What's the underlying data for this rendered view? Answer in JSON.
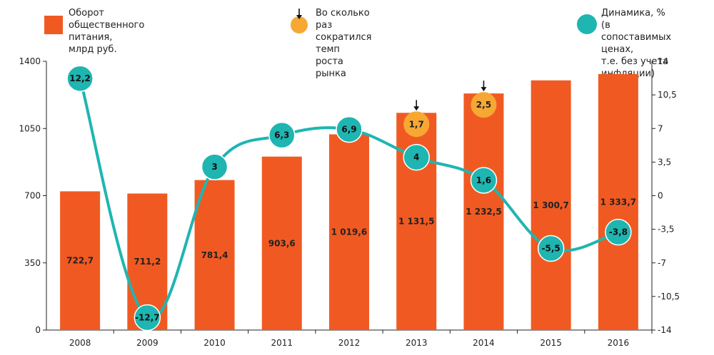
{
  "legend": {
    "bars": "Оборот\nобщественного питания,\nмлрд руб.",
    "markers": "Во сколько раз\nсократился темп\nроста рынка",
    "line": "Динамика, %\n(в сопоставимых ценах,\nт.е. без учета инфляции)"
  },
  "colors": {
    "bar": "#f05a22",
    "line": "#1fb5b1",
    "marker": "#f7a833",
    "axis": "#222222"
  },
  "chart_data": {
    "type": "bar",
    "categories": [
      "2008",
      "2009",
      "2010",
      "2011",
      "2012",
      "2013",
      "2014",
      "2015",
      "2016"
    ],
    "series": [
      {
        "name": "Оборот общественного питания, млрд руб.",
        "type": "bar",
        "axis": "left",
        "values": [
          722.7,
          711.2,
          781.4,
          903.6,
          1019.6,
          1131.5,
          1232.5,
          1300.7,
          1333.7
        ],
        "labels": [
          "722,7",
          "711,2",
          "781,4",
          "903,6",
          "1 019,6",
          "1 131,5",
          "1 232,5",
          "1 300,7",
          "1 333,7"
        ]
      },
      {
        "name": "Динамика, % (в сопоставимых ценах, т.е. без учета инфляции)",
        "type": "line",
        "axis": "right",
        "values": [
          12.2,
          -12.7,
          3,
          6.3,
          6.9,
          4,
          1.6,
          -5.5,
          -3.8
        ],
        "labels": [
          "12,2",
          "-12,7",
          "3",
          "6,3",
          "6,9",
          "4",
          "1,6",
          "-5,5",
          "-3,8"
        ]
      }
    ],
    "markers": [
      {
        "category": "2013",
        "value": 1.7,
        "label": "1,7"
      },
      {
        "category": "2014",
        "value": 2.5,
        "label": "2,5"
      }
    ],
    "left_axis": {
      "ylim": [
        0,
        1400
      ],
      "ticks": [
        0,
        350,
        700,
        1050,
        1400
      ],
      "tick_labels": [
        "0",
        "350",
        "700",
        "1050",
        "1400"
      ]
    },
    "right_axis": {
      "ylim": [
        -14,
        14
      ],
      "ticks": [
        14,
        10.5,
        7,
        3.5,
        0,
        -3.5,
        -7,
        -10.5,
        -14
      ],
      "tick_labels": [
        "14",
        "10,5",
        "7",
        "3,5",
        "0",
        "-3,5",
        "-7",
        "-10,5",
        "-14"
      ]
    },
    "title": "",
    "xlabel": "",
    "ylabel": ""
  }
}
